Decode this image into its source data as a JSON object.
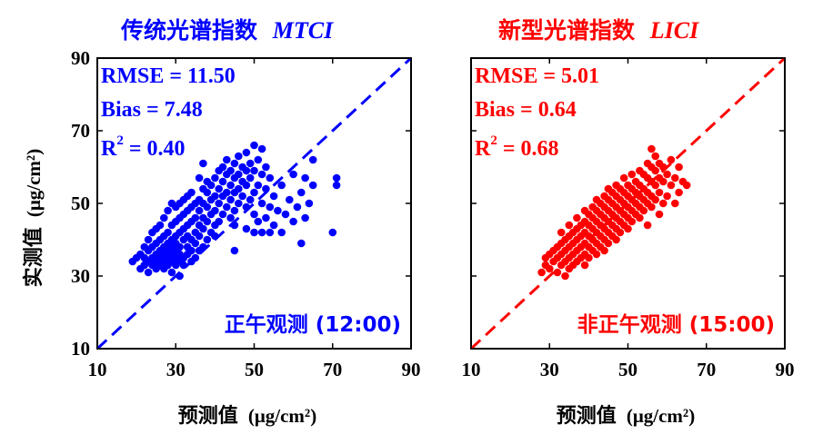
{
  "chart_data": [
    {
      "type": "scatter",
      "title": "传统光谱指数",
      "title_index": "MTCI",
      "xlabel": "预测值",
      "ylabel": "实测值",
      "unit": "(μg/cm²)",
      "xlim": [
        10,
        90
      ],
      "ylim": [
        10,
        90
      ],
      "xticks": [
        "10",
        "30",
        "50",
        "70",
        "90"
      ],
      "yticks": [
        "10",
        "30",
        "50",
        "70",
        "90"
      ],
      "color": "#0000ff",
      "stats": [
        "RMSE = 11.50",
        "Bias = 7.48",
        "R",
        "2",
        " = 0.40"
      ],
      "annotation": "正午观测 (12:00)",
      "reference_line": "1:1",
      "points": [
        [
          19,
          34
        ],
        [
          20,
          35
        ],
        [
          21,
          32
        ],
        [
          21,
          36
        ],
        [
          22,
          33
        ],
        [
          22,
          35
        ],
        [
          22,
          38
        ],
        [
          23,
          31
        ],
        [
          23,
          34
        ],
        [
          23,
          37
        ],
        [
          23,
          40
        ],
        [
          24,
          33
        ],
        [
          24,
          35
        ],
        [
          24,
          38
        ],
        [
          24,
          42
        ],
        [
          25,
          32
        ],
        [
          25,
          34
        ],
        [
          25,
          36
        ],
        [
          25,
          39
        ],
        [
          25,
          43
        ],
        [
          26,
          33
        ],
        [
          26,
          35
        ],
        [
          26,
          37
        ],
        [
          26,
          40
        ],
        [
          26,
          44
        ],
        [
          27,
          32
        ],
        [
          27,
          34
        ],
        [
          27,
          36
        ],
        [
          27,
          38
        ],
        [
          27,
          41
        ],
        [
          27,
          46
        ],
        [
          28,
          33
        ],
        [
          28,
          35
        ],
        [
          28,
          37
        ],
        [
          28,
          39
        ],
        [
          28,
          42
        ],
        [
          28,
          48
        ],
        [
          29,
          31
        ],
        [
          29,
          34
        ],
        [
          29,
          36
        ],
        [
          29,
          38
        ],
        [
          29,
          40
        ],
        [
          29,
          44
        ],
        [
          29,
          50
        ],
        [
          30,
          33
        ],
        [
          30,
          35
        ],
        [
          30,
          37
        ],
        [
          30,
          39
        ],
        [
          30,
          41
        ],
        [
          30,
          45
        ],
        [
          30,
          49
        ],
        [
          31,
          30
        ],
        [
          31,
          34
        ],
        [
          31,
          36
        ],
        [
          31,
          38
        ],
        [
          31,
          42
        ],
        [
          31,
          46
        ],
        [
          31,
          50
        ],
        [
          32,
          33
        ],
        [
          32,
          35
        ],
        [
          32,
          40
        ],
        [
          32,
          43
        ],
        [
          32,
          47
        ],
        [
          32,
          51
        ],
        [
          33,
          36
        ],
        [
          33,
          38
        ],
        [
          33,
          41
        ],
        [
          33,
          44
        ],
        [
          33,
          48
        ],
        [
          33,
          52
        ],
        [
          34,
          34
        ],
        [
          34,
          37
        ],
        [
          34,
          40
        ],
        [
          34,
          45
        ],
        [
          34,
          49
        ],
        [
          34,
          53
        ],
        [
          35,
          35
        ],
        [
          35,
          39
        ],
        [
          35,
          42
        ],
        [
          35,
          46
        ],
        [
          35,
          50
        ],
        [
          36,
          37
        ],
        [
          36,
          41
        ],
        [
          36,
          44
        ],
        [
          36,
          48
        ],
        [
          36,
          51
        ],
        [
          36,
          57
        ],
        [
          37,
          38
        ],
        [
          37,
          43
        ],
        [
          37,
          46
        ],
        [
          37,
          50
        ],
        [
          37,
          54
        ],
        [
          37,
          61
        ],
        [
          38,
          40
        ],
        [
          38,
          45
        ],
        [
          38,
          49
        ],
        [
          38,
          53
        ],
        [
          38,
          56
        ],
        [
          39,
          42
        ],
        [
          39,
          47
        ],
        [
          39,
          51
        ],
        [
          39,
          55
        ],
        [
          40,
          41
        ],
        [
          40,
          44
        ],
        [
          40,
          48
        ],
        [
          40,
          52
        ],
        [
          40,
          57
        ],
        [
          41,
          45
        ],
        [
          41,
          50
        ],
        [
          41,
          54
        ],
        [
          41,
          59
        ],
        [
          42,
          47
        ],
        [
          42,
          52
        ],
        [
          42,
          56
        ],
        [
          42,
          60
        ],
        [
          43,
          49
        ],
        [
          43,
          53
        ],
        [
          43,
          58
        ],
        [
          43,
          62
        ],
        [
          44,
          46
        ],
        [
          44,
          51
        ],
        [
          44,
          55
        ],
        [
          44,
          59
        ],
        [
          45,
          37
        ],
        [
          45,
          44
        ],
        [
          45,
          48
        ],
        [
          45,
          53
        ],
        [
          45,
          57
        ],
        [
          45,
          61
        ],
        [
          46,
          50
        ],
        [
          46,
          54
        ],
        [
          46,
          58
        ],
        [
          46,
          63
        ],
        [
          47,
          52
        ],
        [
          47,
          56
        ],
        [
          47,
          60
        ],
        [
          48,
          43
        ],
        [
          48,
          49
        ],
        [
          48,
          55
        ],
        [
          48,
          59
        ],
        [
          48,
          64
        ],
        [
          49,
          51
        ],
        [
          49,
          57
        ],
        [
          49,
          61
        ],
        [
          50,
          42
        ],
        [
          50,
          47
        ],
        [
          50,
          53
        ],
        [
          50,
          59
        ],
        [
          50,
          66
        ],
        [
          51,
          45
        ],
        [
          51,
          55
        ],
        [
          51,
          62
        ],
        [
          52,
          42
        ],
        [
          52,
          50
        ],
        [
          52,
          58
        ],
        [
          52,
          65
        ],
        [
          53,
          46
        ],
        [
          53,
          54
        ],
        [
          53,
          60
        ],
        [
          54,
          42
        ],
        [
          54,
          49
        ],
        [
          54,
          57
        ],
        [
          55,
          44
        ],
        [
          55,
          52
        ],
        [
          56,
          48
        ],
        [
          57,
          42
        ],
        [
          57,
          55
        ],
        [
          58,
          47
        ],
        [
          59,
          51
        ],
        [
          60,
          45
        ],
        [
          60,
          58
        ],
        [
          61,
          49
        ],
        [
          62,
          39
        ],
        [
          62,
          53
        ],
        [
          63,
          46
        ],
        [
          63,
          57
        ],
        [
          64,
          50
        ],
        [
          65,
          55
        ],
        [
          65,
          62
        ],
        [
          70,
          42
        ],
        [
          71,
          55
        ],
        [
          71,
          57
        ]
      ]
    },
    {
      "type": "scatter",
      "title": "新型光谱指数",
      "title_index": "LICI",
      "xlabel": "预测值",
      "ylabel": "",
      "unit": "(μg/cm²)",
      "xlim": [
        10,
        90
      ],
      "ylim": [
        10,
        90
      ],
      "xticks": [
        "10",
        "30",
        "50",
        "70",
        "90"
      ],
      "yticks": [],
      "color": "#ff0000",
      "stats": [
        "RMSE = 5.01",
        "Bias = 0.64",
        "R",
        "2",
        " = 0.68"
      ],
      "annotation": "非正午观测 (15:00)",
      "reference_line": "1:1",
      "points": [
        [
          28,
          31
        ],
        [
          29,
          33
        ],
        [
          29,
          35
        ],
        [
          30,
          32
        ],
        [
          30,
          36
        ],
        [
          31,
          34
        ],
        [
          31,
          37
        ],
        [
          32,
          31
        ],
        [
          32,
          35
        ],
        [
          32,
          38
        ],
        [
          33,
          33
        ],
        [
          33,
          36
        ],
        [
          33,
          39
        ],
        [
          33,
          42
        ],
        [
          34,
          30
        ],
        [
          34,
          34
        ],
        [
          34,
          37
        ],
        [
          34,
          40
        ],
        [
          35,
          32
        ],
        [
          35,
          35
        ],
        [
          35,
          38
        ],
        [
          35,
          41
        ],
        [
          35,
          44
        ],
        [
          36,
          33
        ],
        [
          36,
          36
        ],
        [
          36,
          39
        ],
        [
          36,
          42
        ],
        [
          37,
          34
        ],
        [
          37,
          37
        ],
        [
          37,
          40
        ],
        [
          37,
          43
        ],
        [
          37,
          46
        ],
        [
          38,
          35
        ],
        [
          38,
          38
        ],
        [
          38,
          41
        ],
        [
          38,
          44
        ],
        [
          39,
          33
        ],
        [
          39,
          36
        ],
        [
          39,
          39
        ],
        [
          39,
          42
        ],
        [
          39,
          45
        ],
        [
          39,
          48
        ],
        [
          40,
          35
        ],
        [
          40,
          38
        ],
        [
          40,
          41
        ],
        [
          40,
          44
        ],
        [
          40,
          47
        ],
        [
          41,
          37
        ],
        [
          41,
          40
        ],
        [
          41,
          43
        ],
        [
          41,
          46
        ],
        [
          41,
          49
        ],
        [
          42,
          36
        ],
        [
          42,
          39
        ],
        [
          42,
          42
        ],
        [
          42,
          45
        ],
        [
          42,
          48
        ],
        [
          42,
          51
        ],
        [
          43,
          38
        ],
        [
          43,
          41
        ],
        [
          43,
          44
        ],
        [
          43,
          47
        ],
        [
          43,
          50
        ],
        [
          44,
          37
        ],
        [
          44,
          40
        ],
        [
          44,
          43
        ],
        [
          44,
          46
        ],
        [
          44,
          49
        ],
        [
          44,
          52
        ],
        [
          45,
          39
        ],
        [
          45,
          42
        ],
        [
          45,
          45
        ],
        [
          45,
          48
        ],
        [
          45,
          51
        ],
        [
          45,
          54
        ],
        [
          46,
          41
        ],
        [
          46,
          44
        ],
        [
          46,
          47
        ],
        [
          46,
          50
        ],
        [
          46,
          53
        ],
        [
          47,
          40
        ],
        [
          47,
          43
        ],
        [
          47,
          46
        ],
        [
          47,
          49
        ],
        [
          47,
          52
        ],
        [
          47,
          55
        ],
        [
          48,
          42
        ],
        [
          48,
          45
        ],
        [
          48,
          48
        ],
        [
          48,
          51
        ],
        [
          48,
          54
        ],
        [
          49,
          44
        ],
        [
          49,
          47
        ],
        [
          49,
          50
        ],
        [
          49,
          53
        ],
        [
          49,
          57
        ],
        [
          50,
          43
        ],
        [
          50,
          46
        ],
        [
          50,
          49
        ],
        [
          50,
          52
        ],
        [
          50,
          55
        ],
        [
          51,
          45
        ],
        [
          51,
          48
        ],
        [
          51,
          51
        ],
        [
          51,
          54
        ],
        [
          51,
          58
        ],
        [
          52,
          47
        ],
        [
          52,
          50
        ],
        [
          52,
          53
        ],
        [
          52,
          56
        ],
        [
          53,
          46
        ],
        [
          53,
          49
        ],
        [
          53,
          52
        ],
        [
          53,
          55
        ],
        [
          53,
          59
        ],
        [
          54,
          48
        ],
        [
          54,
          51
        ],
        [
          54,
          54
        ],
        [
          54,
          58
        ],
        [
          55,
          44
        ],
        [
          55,
          50
        ],
        [
          55,
          53
        ],
        [
          55,
          57
        ],
        [
          55,
          61
        ],
        [
          56,
          49
        ],
        [
          56,
          52
        ],
        [
          56,
          56
        ],
        [
          56,
          60
        ],
        [
          56,
          65
        ],
        [
          57,
          51
        ],
        [
          57,
          55
        ],
        [
          57,
          59
        ],
        [
          57,
          63
        ],
        [
          58,
          47
        ],
        [
          58,
          53
        ],
        [
          58,
          57
        ],
        [
          58,
          61
        ],
        [
          59,
          50
        ],
        [
          59,
          56
        ],
        [
          59,
          60
        ],
        [
          60,
          52
        ],
        [
          60,
          58
        ],
        [
          61,
          55
        ],
        [
          61,
          62
        ],
        [
          62,
          50
        ],
        [
          62,
          57
        ],
        [
          63,
          53
        ],
        [
          63,
          60
        ],
        [
          64,
          56
        ],
        [
          65,
          55
        ]
      ]
    }
  ]
}
